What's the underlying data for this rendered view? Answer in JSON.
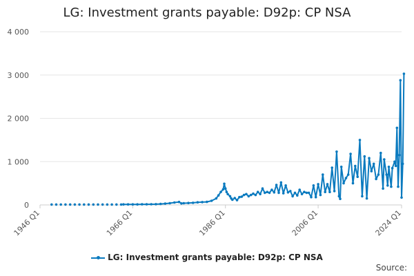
{
  "chart_data": {
    "type": "line",
    "title": "LG: Investment grants payable: D92p: CP NSA",
    "series_name": "LG: Investment grants payable: D92p: CP NSA",
    "series_color": "#0a7abf",
    "xlabel": "",
    "ylabel": "",
    "x_range": [
      1946.0,
      2024.0
    ],
    "ylim": [
      0,
      4000
    ],
    "y_ticks": [
      0,
      1000,
      2000,
      3000,
      4000
    ],
    "y_tick_labels": [
      "0",
      "1 000",
      "2 000",
      "3 000",
      "4 000"
    ],
    "x_ticks": [
      1946.0,
      1966.0,
      1986.0,
      2006.0,
      2024.0
    ],
    "x_tick_labels": [
      "1946 Q1",
      "1966 Q1",
      "1986 Q1",
      "2006 Q1",
      "2024 Q1"
    ],
    "grid": "horizontal",
    "legend": "bottom",
    "points": [
      [
        1948.5,
        10
      ],
      [
        1949.5,
        10
      ],
      [
        1950.5,
        10
      ],
      [
        1951.5,
        10
      ],
      [
        1952.5,
        10
      ],
      [
        1953.5,
        10
      ],
      [
        1954.5,
        10
      ],
      [
        1955.5,
        10
      ],
      [
        1956.5,
        10
      ],
      [
        1957.5,
        10
      ],
      [
        1958.5,
        10
      ],
      [
        1959.5,
        10
      ],
      [
        1960.5,
        10
      ],
      [
        1961.5,
        10
      ],
      [
        1962.5,
        10
      ],
      [
        1963.5,
        10
      ],
      [
        1964.0,
        12
      ],
      [
        1965.0,
        12
      ],
      [
        1966.0,
        12
      ],
      [
        1967.0,
        12
      ],
      [
        1968.0,
        14
      ],
      [
        1969.0,
        15
      ],
      [
        1970.0,
        16
      ],
      [
        1971.0,
        18
      ],
      [
        1972.0,
        22
      ],
      [
        1973.0,
        30
      ],
      [
        1974.0,
        40
      ],
      [
        1975.0,
        55
      ],
      [
        1976.0,
        68
      ],
      [
        1976.5,
        35
      ],
      [
        1977.0,
        40
      ],
      [
        1978.0,
        45
      ],
      [
        1979.0,
        50
      ],
      [
        1980.0,
        60
      ],
      [
        1981.0,
        65
      ],
      [
        1982.0,
        70
      ],
      [
        1983.0,
        95
      ],
      [
        1984.0,
        150
      ],
      [
        1984.5,
        220
      ],
      [
        1985.0,
        300
      ],
      [
        1985.5,
        360
      ],
      [
        1985.75,
        490
      ],
      [
        1986.0,
        380
      ],
      [
        1986.25,
        300
      ],
      [
        1986.5,
        250
      ],
      [
        1987.0,
        200
      ],
      [
        1987.25,
        150
      ],
      [
        1987.5,
        120
      ],
      [
        1988.0,
        160
      ],
      [
        1988.5,
        110
      ],
      [
        1989.0,
        180
      ],
      [
        1989.5,
        190
      ],
      [
        1990.0,
        230
      ],
      [
        1990.5,
        250
      ],
      [
        1991.0,
        200
      ],
      [
        1991.5,
        230
      ],
      [
        1992.0,
        260
      ],
      [
        1992.5,
        230
      ],
      [
        1993.0,
        300
      ],
      [
        1993.5,
        250
      ],
      [
        1994.0,
        380
      ],
      [
        1994.5,
        280
      ],
      [
        1995.0,
        300
      ],
      [
        1995.5,
        280
      ],
      [
        1996.0,
        350
      ],
      [
        1996.5,
        290
      ],
      [
        1997.0,
        460
      ],
      [
        1997.5,
        280
      ],
      [
        1998.0,
        520
      ],
      [
        1998.5,
        270
      ],
      [
        1999.0,
        450
      ],
      [
        1999.5,
        290
      ],
      [
        2000.0,
        320
      ],
      [
        2000.5,
        200
      ],
      [
        2001.0,
        280
      ],
      [
        2001.5,
        220
      ],
      [
        2002.0,
        350
      ],
      [
        2002.5,
        250
      ],
      [
        2003.0,
        300
      ],
      [
        2003.5,
        280
      ],
      [
        2004.0,
        280
      ],
      [
        2004.5,
        180
      ],
      [
        2005.0,
        450
      ],
      [
        2005.5,
        180
      ],
      [
        2006.0,
        480
      ],
      [
        2006.5,
        230
      ],
      [
        2007.0,
        700
      ],
      [
        2007.5,
        300
      ],
      [
        2008.0,
        480
      ],
      [
        2008.5,
        300
      ],
      [
        2009.0,
        860
      ],
      [
        2009.5,
        320
      ],
      [
        2010.0,
        1230
      ],
      [
        2010.5,
        200
      ],
      [
        2010.75,
        140
      ],
      [
        2011.0,
        880
      ],
      [
        2011.5,
        500
      ],
      [
        2012.0,
        620
      ],
      [
        2012.5,
        700
      ],
      [
        2013.0,
        1180
      ],
      [
        2013.5,
        500
      ],
      [
        2014.0,
        900
      ],
      [
        2014.5,
        650
      ],
      [
        2015.0,
        1500
      ],
      [
        2015.5,
        200
      ],
      [
        2016.0,
        1120
      ],
      [
        2016.5,
        150
      ],
      [
        2017.0,
        1080
      ],
      [
        2017.5,
        780
      ],
      [
        2018.0,
        950
      ],
      [
        2018.5,
        600
      ],
      [
        2019.0,
        700
      ],
      [
        2019.5,
        1200
      ],
      [
        2020.0,
        380
      ],
      [
        2020.25,
        1050
      ],
      [
        2020.75,
        700
      ],
      [
        2021.0,
        450
      ],
      [
        2021.25,
        880
      ],
      [
        2021.75,
        420
      ],
      [
        2022.0,
        850
      ],
      [
        2022.5,
        1000
      ],
      [
        2022.75,
        900
      ],
      [
        2023.0,
        1780
      ],
      [
        2023.25,
        420
      ],
      [
        2023.5,
        1150
      ],
      [
        2023.75,
        2880
      ],
      [
        2024.0,
        170
      ],
      [
        2024.25,
        950
      ],
      [
        2024.5,
        3030
      ]
    ]
  },
  "source_label": "Source:"
}
